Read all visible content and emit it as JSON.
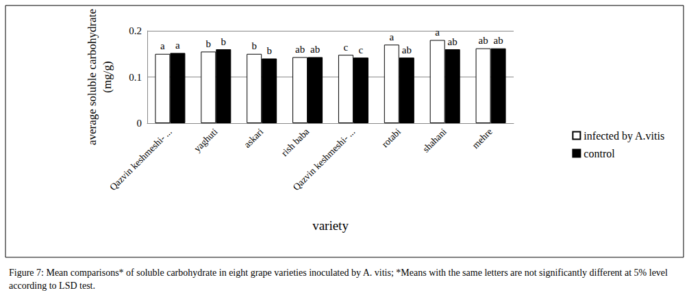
{
  "chart_data": {
    "type": "bar",
    "caption": "Figure 7: Mean comparisons* of soluble carbohydrate in eight grape varieties inoculated by A. vitis; *Means with the same letters are not significantly different at 5% level according to LSD test.",
    "x_label": "variety",
    "y_label": "average soluble carbohydrate\n(mg/g)",
    "categories": [
      "Qazvin keshmeshi- ...",
      "yaghuti",
      "askari",
      "rish baba",
      "Qazvin keshmeshi- ...",
      "rotabi",
      "shahani",
      "mehre"
    ],
    "series": [
      {
        "name": "infected by A.vitis",
        "color": "#ffffff",
        "values": [
          0.15,
          0.155,
          0.15,
          0.143,
          0.148,
          0.17,
          0.18,
          0.162
        ],
        "letters": [
          "a",
          "b",
          "b",
          "ab",
          "c",
          "a",
          "a",
          "ab"
        ]
      },
      {
        "name": "control",
        "color": "#000000",
        "values": [
          0.152,
          0.16,
          0.14,
          0.143,
          0.142,
          0.142,
          0.16,
          0.162
        ],
        "letters": [
          "a",
          "b",
          "b",
          "ab",
          "c",
          "ab",
          "ab",
          "ab"
        ]
      }
    ],
    "ylim": [
      0,
      0.2
    ],
    "yticks": [
      0,
      0.1,
      0.2
    ],
    "grid": true,
    "legend": "right"
  }
}
